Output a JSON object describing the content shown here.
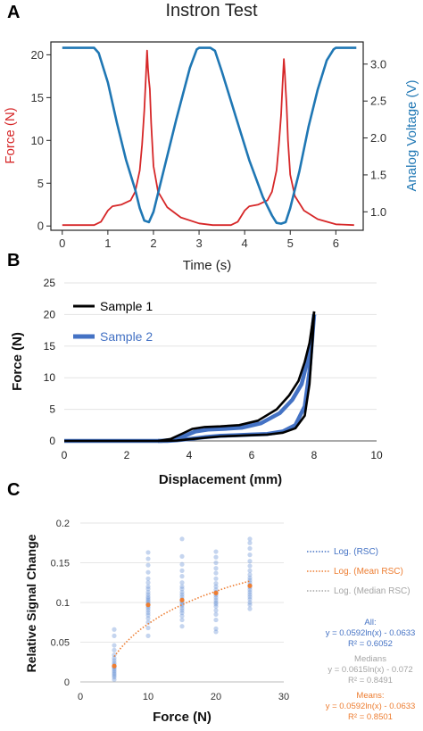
{
  "panels": {
    "a": "A",
    "b": "B",
    "c": "C"
  },
  "chart_data": [
    {
      "type": "line",
      "title": "Instron Test",
      "xlabel": "Time (s)",
      "ylabel_left": "Force (N)",
      "ylabel_right": "Analog Voltage (V)",
      "xlim": [
        -0.25,
        6.6
      ],
      "ylim_left": [
        -0.5,
        21.5
      ],
      "ylim_right": [
        0.75,
        3.3
      ],
      "xticks": [
        0,
        1,
        2,
        3,
        4,
        5,
        6
      ],
      "yticks_left": [
        0,
        5,
        10,
        15,
        20
      ],
      "yticks_right": [
        1.0,
        1.5,
        2.0,
        2.5,
        3.0
      ],
      "series": [
        {
          "color": "#d62728",
          "axis": "left",
          "x": [
            0,
            0.7,
            0.85,
            1.0,
            1.1,
            1.3,
            1.5,
            1.6,
            1.7,
            1.75,
            1.8,
            1.83,
            1.86,
            1.88,
            1.9,
            1.92,
            1.95,
            2.0,
            2.1,
            2.3,
            2.6,
            3.0,
            3.3,
            3.7,
            3.85,
            4.0,
            4.1,
            4.3,
            4.5,
            4.6,
            4.7,
            4.75,
            4.8,
            4.83,
            4.86,
            4.88,
            4.9,
            4.92,
            4.95,
            5.0,
            5.1,
            5.3,
            5.6,
            6.0,
            6.4
          ],
          "values": [
            0.1,
            0.1,
            0.5,
            1.8,
            2.3,
            2.5,
            3.0,
            4.0,
            6.5,
            9.5,
            13.5,
            17.0,
            20.5,
            18.5,
            17.0,
            16.0,
            12.0,
            7.0,
            4.0,
            2.2,
            1.0,
            0.3,
            0.1,
            0.1,
            0.5,
            1.8,
            2.3,
            2.5,
            3.0,
            4.0,
            6.5,
            9.5,
            13.0,
            16.5,
            19.5,
            18.0,
            16.0,
            14.0,
            10.0,
            6.0,
            3.5,
            1.8,
            0.8,
            0.2,
            0.1
          ]
        },
        {
          "color": "#1f77b4",
          "axis": "right",
          "x": [
            0,
            0.7,
            0.8,
            1.0,
            1.2,
            1.4,
            1.6,
            1.7,
            1.8,
            1.9,
            2.0,
            2.2,
            2.5,
            2.8,
            2.95,
            3.0,
            3.25,
            3.35,
            3.5,
            3.8,
            4.1,
            4.4,
            4.6,
            4.7,
            4.8,
            4.9,
            5.0,
            5.2,
            5.4,
            5.6,
            5.8,
            5.95,
            6.0,
            6.45
          ],
          "values": [
            3.22,
            3.22,
            3.15,
            2.75,
            2.2,
            1.7,
            1.3,
            1.05,
            0.88,
            0.86,
            1.0,
            1.5,
            2.25,
            2.95,
            3.2,
            3.22,
            3.22,
            3.18,
            2.9,
            2.3,
            1.7,
            1.2,
            0.95,
            0.85,
            0.84,
            0.86,
            1.05,
            1.55,
            2.15,
            2.65,
            3.05,
            3.2,
            3.22,
            3.22
          ]
        }
      ]
    },
    {
      "type": "line",
      "xlabel": "Displacement (mm)",
      "ylabel": "Force (N)",
      "xlim": [
        0,
        10
      ],
      "ylim": [
        0,
        25
      ],
      "xticks": [
        0,
        2,
        4,
        6,
        8,
        10
      ],
      "yticks": [
        0,
        5,
        10,
        15,
        20,
        25
      ],
      "legend_position": "top-left",
      "series": [
        {
          "name": "Sample 1",
          "color": "#000000",
          "loading": {
            "x": [
              0,
              3.0,
              3.4,
              3.8,
              4.1,
              4.5,
              5.0,
              5.6,
              6.2,
              6.8,
              7.2,
              7.5,
              7.7,
              7.85,
              8.0
            ],
            "values": [
              0,
              0,
              0.3,
              1.2,
              1.9,
              2.2,
              2.3,
              2.5,
              3.2,
              5.0,
              7.2,
              9.5,
              12.5,
              15.5,
              20.5
            ]
          },
          "unloading": {
            "x": [
              8.0,
              7.95,
              7.85,
              7.7,
              7.4,
              7.0,
              6.5,
              6.0,
              5.5,
              5.0,
              4.5,
              4.0,
              3.6,
              3.2,
              3.0
            ],
            "values": [
              20.5,
              16.0,
              9.0,
              4.0,
              2.0,
              1.3,
              1.0,
              0.9,
              0.8,
              0.7,
              0.5,
              0.25,
              0.05,
              0.0,
              0.0
            ]
          }
        },
        {
          "name": "Sample 2",
          "color": "#4472c4",
          "loading": {
            "x": [
              0,
              3.1,
              3.5,
              3.9,
              4.2,
              4.6,
              5.1,
              5.7,
              6.3,
              6.9,
              7.3,
              7.6,
              7.75,
              7.9,
              8.0
            ],
            "values": [
              0,
              0,
              0.2,
              0.9,
              1.5,
              1.8,
              1.9,
              2.1,
              2.8,
              4.4,
              6.5,
              9.0,
              12.0,
              15.5,
              20.0
            ]
          },
          "unloading": {
            "x": [
              8.0,
              7.95,
              7.85,
              7.7,
              7.4,
              7.0,
              6.5,
              6.0,
              5.5,
              5.0,
              4.5,
              4.0,
              3.6,
              3.3,
              3.0
            ],
            "values": [
              20.0,
              17.0,
              11.0,
              5.5,
              2.5,
              1.5,
              1.1,
              1.0,
              0.9,
              0.8,
              0.6,
              0.3,
              0.1,
              0.0,
              0.0
            ]
          }
        }
      ]
    },
    {
      "type": "scatter",
      "xlabel": "Force (N)",
      "ylabel": "Relative Signal Change",
      "xlim": [
        0,
        30
      ],
      "ylim": [
        0,
        0.2
      ],
      "xticks": [
        0,
        10,
        20,
        30
      ],
      "yticks": [
        0,
        0.05,
        0.1,
        0.15,
        0.2
      ],
      "ytick_labels": [
        "0",
        "0.05",
        "0.1",
        "0.15",
        "0.2"
      ],
      "legend_position": "right",
      "scatter_points": [
        {
          "x": 5,
          "values": [
            0.003,
            0.006,
            0.008,
            0.01,
            0.012,
            0.014,
            0.016,
            0.018,
            0.019,
            0.02,
            0.022,
            0.024,
            0.027,
            0.03,
            0.034,
            0.04,
            0.046,
            0.058,
            0.066
          ]
        },
        {
          "x": 10,
          "values": [
            0.058,
            0.068,
            0.075,
            0.08,
            0.084,
            0.087,
            0.09,
            0.093,
            0.095,
            0.097,
            0.099,
            0.101,
            0.103,
            0.105,
            0.107,
            0.11,
            0.113,
            0.117,
            0.12,
            0.125,
            0.13,
            0.138,
            0.147,
            0.155,
            0.163
          ]
        },
        {
          "x": 15,
          "values": [
            0.07,
            0.078,
            0.083,
            0.087,
            0.09,
            0.093,
            0.096,
            0.098,
            0.1,
            0.102,
            0.104,
            0.107,
            0.11,
            0.113,
            0.117,
            0.12,
            0.125,
            0.133,
            0.14,
            0.148,
            0.158,
            0.18
          ]
        },
        {
          "x": 20,
          "values": [
            0.063,
            0.067,
            0.078,
            0.085,
            0.09,
            0.095,
            0.098,
            0.1,
            0.103,
            0.106,
            0.109,
            0.111,
            0.113,
            0.116,
            0.12,
            0.124,
            0.13,
            0.137,
            0.143,
            0.15,
            0.157,
            0.164
          ]
        },
        {
          "x": 25,
          "values": [
            0.092,
            0.097,
            0.1,
            0.104,
            0.107,
            0.11,
            0.113,
            0.116,
            0.119,
            0.122,
            0.125,
            0.128,
            0.131,
            0.135,
            0.14,
            0.146,
            0.152,
            0.16,
            0.168,
            0.175,
            0.18
          ]
        }
      ],
      "means": [
        {
          "x": 5,
          "value": 0.02
        },
        {
          "x": 10,
          "value": 0.097
        },
        {
          "x": 15,
          "value": 0.103
        },
        {
          "x": 20,
          "value": 0.112
        },
        {
          "x": 25,
          "value": 0.121
        }
      ],
      "fit": {
        "name": "Log. (Mean RSC)",
        "color": "#ed7d31",
        "x": [
          5,
          6,
          7,
          8,
          9,
          10,
          12,
          14,
          16,
          18,
          20,
          22,
          25
        ],
        "values": [
          0.032,
          0.043,
          0.052,
          0.06,
          0.067,
          0.073,
          0.084,
          0.093,
          0.101,
          0.108,
          0.114,
          0.12,
          0.127
        ]
      },
      "legend": [
        {
          "label": "Log. (RSC)",
          "color": "#4472c4"
        },
        {
          "label": "Log. (Mean RSC)",
          "color": "#ed7d31"
        },
        {
          "label": "Log. (Median RSC)",
          "color": "#a5a5a5"
        }
      ],
      "annotations": [
        {
          "lines": [
            "All:",
            "y = 0.0592ln(x) - 0.0633",
            "R² = 0.6052"
          ],
          "color": "#4472c4"
        },
        {
          "lines": [
            "Medians",
            "y = 0.0615ln(x) - 0.072",
            "R² = 0.8491"
          ],
          "color": "#a5a5a5"
        },
        {
          "lines": [
            "Means:",
            "y = 0.0592ln(x) - 0.0633",
            "R² = 0.8501"
          ],
          "color": "#ed7d31"
        }
      ]
    }
  ]
}
